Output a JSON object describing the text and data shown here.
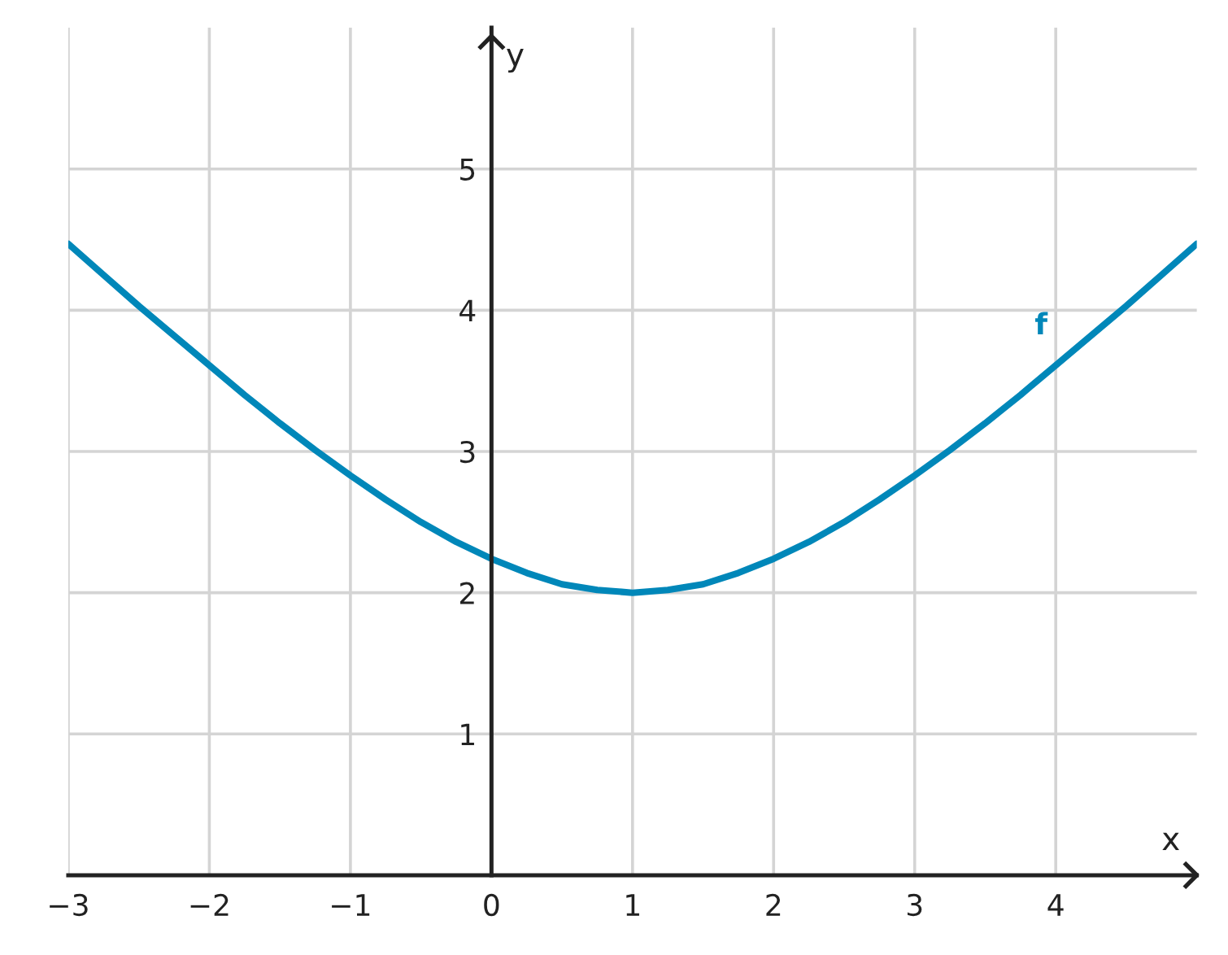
{
  "chart_data": {
    "type": "line",
    "xlabel": "x",
    "ylabel": "y",
    "xlim": [
      -3,
      5
    ],
    "ylim": [
      0,
      6
    ],
    "xticks": [
      {
        "value": -3,
        "label": "−3"
      },
      {
        "value": -2,
        "label": "−2"
      },
      {
        "value": -1,
        "label": "−1"
      },
      0,
      1,
      2,
      3,
      4
    ],
    "yticks": [
      1,
      2,
      3,
      4,
      5
    ],
    "grid": true,
    "series": [
      {
        "name": "f",
        "color": "#0087b9",
        "x": [
          -3,
          -2.75,
          -2.5,
          -2.25,
          -2,
          -1.75,
          -1.5,
          -1.25,
          -1,
          -0.75,
          -0.5,
          -0.25,
          0,
          0.25,
          0.5,
          0.75,
          1,
          1.25,
          1.5,
          1.75,
          2,
          2.25,
          2.5,
          2.75,
          3,
          3.25,
          3.5,
          3.75,
          4,
          4.25,
          4.5,
          4.75,
          5
        ],
        "values": [
          4.47,
          4.25,
          4.03,
          3.82,
          3.61,
          3.4,
          3.2,
          3.01,
          2.83,
          2.66,
          2.5,
          2.36,
          2.24,
          2.14,
          2.06,
          2.02,
          2,
          2.02,
          2.06,
          2.14,
          2.24,
          2.36,
          2.5,
          2.66,
          2.83,
          3.01,
          3.2,
          3.4,
          3.61,
          3.82,
          4.03,
          4.25,
          4.47
        ]
      }
    ]
  }
}
